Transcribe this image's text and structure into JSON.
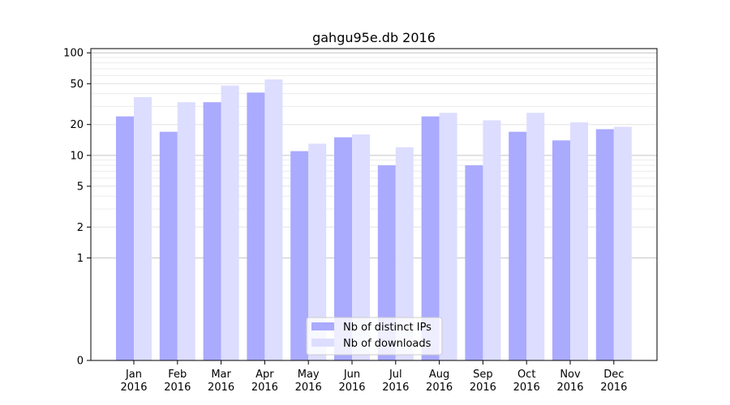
{
  "chart_data": {
    "type": "bar",
    "title": "gahgu95e.db 2016",
    "xlabel": "",
    "ylabel": "",
    "y_scale": "symlog",
    "ylim": [
      0,
      110
    ],
    "y_ticks": [
      0,
      1,
      2,
      5,
      10,
      20,
      50,
      100
    ],
    "y_tick_labels": [
      "0",
      "1",
      "2",
      "5",
      "10",
      "20",
      "50",
      "100"
    ],
    "grid": "horizontal, light gray",
    "legend_position": "bottom-center",
    "categories": [
      {
        "month": "Jan",
        "year": "2016"
      },
      {
        "month": "Feb",
        "year": "2016"
      },
      {
        "month": "Mar",
        "year": "2016"
      },
      {
        "month": "Apr",
        "year": "2016"
      },
      {
        "month": "May",
        "year": "2016"
      },
      {
        "month": "Jun",
        "year": "2016"
      },
      {
        "month": "Jul",
        "year": "2016"
      },
      {
        "month": "Aug",
        "year": "2016"
      },
      {
        "month": "Sep",
        "year": "2016"
      },
      {
        "month": "Oct",
        "year": "2016"
      },
      {
        "month": "Nov",
        "year": "2016"
      },
      {
        "month": "Dec",
        "year": "2016"
      }
    ],
    "series": [
      {
        "name": "Nb of distinct IPs",
        "color": "#aaaaff",
        "values": [
          24,
          17,
          33,
          41,
          11,
          15,
          8,
          24,
          8,
          17,
          14,
          18
        ]
      },
      {
        "name": "Nb of downloads",
        "color": "#ddddff",
        "values": [
          37,
          33,
          48,
          55,
          13,
          16,
          12,
          26,
          22,
          26,
          21,
          19
        ]
      }
    ]
  }
}
